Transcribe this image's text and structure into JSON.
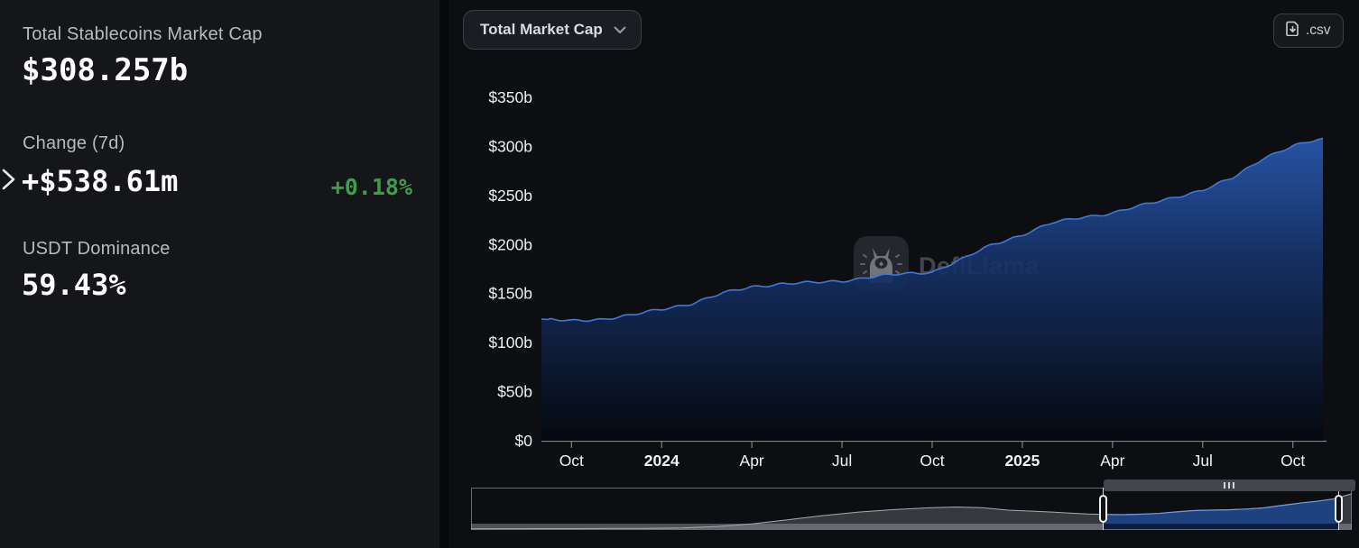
{
  "sidebar": {
    "stats": [
      {
        "label": "Total Stablecoins Market Cap",
        "value": "$308.257b"
      },
      {
        "label": "Change (7d)",
        "value": "+$538.61m",
        "delta": "+0.18%"
      },
      {
        "label": "USDT Dominance",
        "value": "59.43%"
      }
    ]
  },
  "toolbar": {
    "chart_type_selector": "Total Market Cap",
    "csv_label": ".csv"
  },
  "watermark": {
    "text": "DefiLlama"
  },
  "colors": {
    "positive_green": "#3e9e4b",
    "line_blue": "#3d77e0",
    "sidebar_bg": "#15161a",
    "panel_bg": "#0d0e11"
  },
  "chart_data": {
    "type": "area",
    "title": "Total Market Cap",
    "unit": "USD billions",
    "x": [
      "2023-09",
      "2023-10",
      "2023-11",
      "2023-12",
      "2024-01",
      "2024-02",
      "2024-03",
      "2024-04",
      "2024-05",
      "2024-06",
      "2024-07",
      "2024-08",
      "2024-09",
      "2024-10",
      "2024-11",
      "2024-12",
      "2025-01",
      "2025-02",
      "2025-03",
      "2025-04",
      "2025-05",
      "2025-06",
      "2025-07",
      "2025-08",
      "2025-09",
      "2025-10",
      "now"
    ],
    "values": [
      124,
      122,
      124,
      128,
      134,
      140,
      150,
      157,
      160,
      161,
      163,
      167,
      170,
      172,
      185,
      200,
      210,
      222,
      228,
      232,
      240,
      248,
      255,
      268,
      288,
      300,
      308.257
    ],
    "ylim": [
      0,
      350
    ],
    "grid": false,
    "legend": "none",
    "yticks": [
      {
        "label": "$0",
        "v": 0
      },
      {
        "label": "$50b",
        "v": 50
      },
      {
        "label": "$100b",
        "v": 100
      },
      {
        "label": "$150b",
        "v": 150
      },
      {
        "label": "$200b",
        "v": 200
      },
      {
        "label": "$250b",
        "v": 250
      },
      {
        "label": "$300b",
        "v": 300
      },
      {
        "label": "$350b",
        "v": 350
      }
    ],
    "xticks": [
      {
        "label": "Oct",
        "i": 1,
        "bold": false
      },
      {
        "label": "2024",
        "i": 4,
        "bold": true
      },
      {
        "label": "Apr",
        "i": 7,
        "bold": false
      },
      {
        "label": "Jul",
        "i": 10,
        "bold": false
      },
      {
        "label": "Oct",
        "i": 13,
        "bold": false
      },
      {
        "label": "2025",
        "i": 16,
        "bold": true
      },
      {
        "label": "Apr",
        "i": 19,
        "bold": false
      },
      {
        "label": "Jul",
        "i": 22,
        "bold": false
      },
      {
        "label": "Oct",
        "i": 25,
        "bold": false
      }
    ],
    "brush": {
      "selection": [
        0.718,
        0.985
      ],
      "max": 330,
      "points": [
        [
          0,
          2
        ],
        [
          0.04,
          3
        ],
        [
          0.08,
          3.5
        ],
        [
          0.12,
          4
        ],
        [
          0.16,
          5
        ],
        [
          0.2,
          6
        ],
        [
          0.24,
          10
        ],
        [
          0.28,
          22
        ],
        [
          0.32,
          45
        ],
        [
          0.36,
          80
        ],
        [
          0.4,
          115
        ],
        [
          0.44,
          145
        ],
        [
          0.48,
          166
        ],
        [
          0.52,
          181
        ],
        [
          0.55,
          188
        ],
        [
          0.58,
          182
        ],
        [
          0.61,
          161
        ],
        [
          0.64,
          152
        ],
        [
          0.66,
          145
        ],
        [
          0.68,
          136
        ],
        [
          0.7,
          128
        ],
        [
          0.718,
          124
        ],
        [
          0.74,
          123
        ],
        [
          0.76,
          127
        ],
        [
          0.78,
          133
        ],
        [
          0.8,
          146
        ],
        [
          0.82,
          157
        ],
        [
          0.84,
          161
        ],
        [
          0.86,
          164
        ],
        [
          0.88,
          170
        ],
        [
          0.9,
          180
        ],
        [
          0.915,
          196
        ],
        [
          0.93,
          210
        ],
        [
          0.945,
          225
        ],
        [
          0.96,
          236
        ],
        [
          0.975,
          252
        ],
        [
          0.985,
          262
        ],
        [
          0.99,
          280
        ],
        [
          1,
          300
        ]
      ]
    }
  }
}
